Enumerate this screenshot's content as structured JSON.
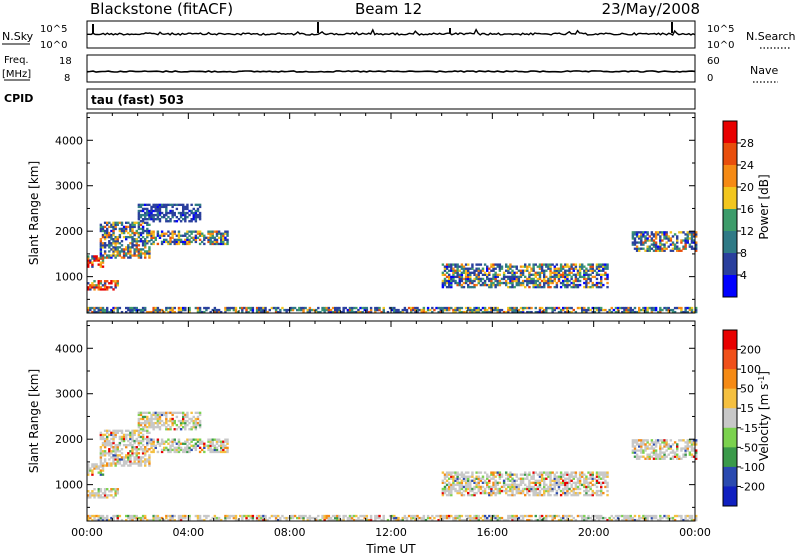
{
  "header": {
    "title": "Blackstone (fitACF)",
    "beam": "Beam 12",
    "date": "23/May/2008"
  },
  "params": {
    "nsky_label": "N.Sky",
    "nsearch_label": "N.Search",
    "freq_label": "Freq.",
    "freq_unit": "[MHz]",
    "nave_label": "Nave",
    "cpid_label": "CPID",
    "mode_label": "tau (fast) 503",
    "noise_ticks_left": [
      "10^5",
      "10^0"
    ],
    "noise_ticks_right": [
      "10^5",
      "10^0"
    ],
    "freq_ticks": [
      "18",
      "8"
    ],
    "nave_ticks": [
      "60",
      "0"
    ]
  },
  "chart_data": [
    {
      "type": "heatmap",
      "quantity": "power",
      "ylabel": "Slant Range [km]",
      "ylim": [
        200,
        4600
      ],
      "yticks": [
        1000,
        2000,
        3000,
        4000
      ],
      "xlim": [
        0,
        24
      ],
      "colorbar_label": "Power [dB]",
      "colorbar_ticks": [
        "28",
        "24",
        "20",
        "16",
        "12",
        "8",
        "4"
      ],
      "colorbar_colors": [
        "#0000ff",
        "#2a3f9d",
        "#2f7a86",
        "#3d9c6a",
        "#f2c61e",
        "#f58a14",
        "#e84e0c",
        "#e80000"
      ],
      "bands": [
        {
          "x": [
            0.0,
            0.6
          ],
          "range": [
            1200,
            1450
          ],
          "dominant": "high"
        },
        {
          "x": [
            0.0,
            1.2
          ],
          "range": [
            700,
            900
          ],
          "dominant": "high"
        },
        {
          "x": [
            0.5,
            2.5
          ],
          "range": [
            1400,
            2200
          ],
          "dominant": "medium"
        },
        {
          "x": [
            2.5,
            5.5
          ],
          "range": [
            1700,
            2000
          ],
          "dominant": "medium"
        },
        {
          "x": [
            2.0,
            4.5
          ],
          "range": [
            2200,
            2600
          ],
          "dominant": "low"
        },
        {
          "x": [
            14.0,
            20.5
          ],
          "range": [
            750,
            1250
          ],
          "dominant": "medium"
        },
        {
          "x": [
            21.5,
            24.0
          ],
          "range": [
            1550,
            2000
          ],
          "dominant": "medium"
        },
        {
          "x": [
            0.0,
            24.0
          ],
          "range": [
            200,
            300
          ],
          "dominant": "medium"
        }
      ]
    },
    {
      "type": "heatmap",
      "quantity": "velocity",
      "ylabel": "Slant Range [km]",
      "xlabel": "Time UT",
      "ylim": [
        200,
        4600
      ],
      "yticks": [
        1000,
        2000,
        3000,
        4000
      ],
      "xlim": [
        0,
        24
      ],
      "xticks": [
        "00:00",
        "04:00",
        "08:00",
        "12:00",
        "16:00",
        "20:00",
        "00:00"
      ],
      "colorbar_label": "Velocity [m s^-1]",
      "colorbar_ticks": [
        "200",
        "100",
        "50",
        "15",
        "-15",
        "-50",
        "-100",
        "-200"
      ],
      "colorbar_colors": [
        "#e80000",
        "#f0501a",
        "#f58a14",
        "#f5c040",
        "#c8c8c8",
        "#7bd24e",
        "#3a9a4a",
        "#2a4ab0",
        "#1020c0"
      ]
    }
  ]
}
